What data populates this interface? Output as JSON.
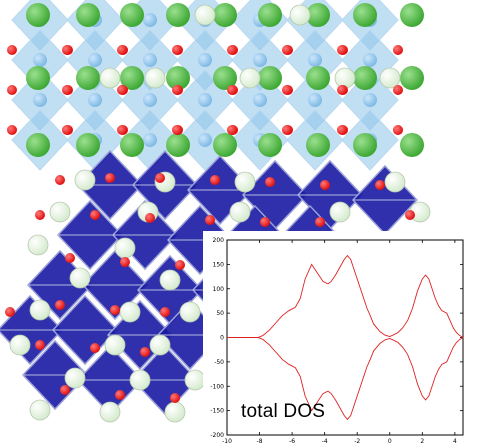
{
  "colors": {
    "light_octahedra": "#8ec5ea",
    "dark_octahedra": "#1a1aa3",
    "green_atoms": "#3fa935",
    "pale_atoms": "#d6ebcf",
    "oxygen_atoms": "#e01010",
    "dos_curve": "#e02020"
  },
  "chart_data": {
    "type": "line",
    "title": "",
    "xlabel": "",
    "ylabel": "",
    "label": "total DOS",
    "xlim": [
      -10,
      4.5
    ],
    "ylim": [
      -200,
      200
    ],
    "x_ticks": [
      -10,
      -8,
      -6,
      -4,
      -2,
      0,
      2,
      4
    ],
    "y_ticks": [
      -200,
      -150,
      -100,
      -50,
      0,
      50,
      100,
      150,
      200
    ],
    "series": [
      {
        "x": [
          -10,
          -8.1,
          -7.8,
          -7.4,
          -7.0,
          -6.6,
          -6.2,
          -5.8,
          -5.5,
          -5.2,
          -4.8,
          -4.4,
          -4.1,
          -3.8,
          -3.6,
          -3.3,
          -3.0,
          -2.8,
          -2.6,
          -2.4,
          -2.2,
          -2.0,
          -1.8,
          -1.6,
          -1.4,
          -1.2,
          -1.0,
          -0.6,
          -0.3,
          0.0,
          0.2,
          0.5,
          0.8,
          1.1,
          1.4,
          1.7,
          2.0,
          2.2,
          2.4,
          2.6,
          2.8,
          3.0,
          3.2,
          3.5,
          3.7,
          3.9,
          4.1,
          4.3,
          4.5
        ],
        "values": [
          0,
          0,
          4,
          15,
          30,
          45,
          55,
          62,
          80,
          120,
          150,
          130,
          115,
          110,
          115,
          130,
          148,
          160,
          168,
          160,
          140,
          120,
          100,
          80,
          60,
          45,
          28,
          12,
          5,
          2,
          5,
          10,
          20,
          35,
          60,
          95,
          120,
          128,
          120,
          100,
          80,
          65,
          55,
          50,
          35,
          20,
          10,
          4,
          0
        ]
      },
      {
        "x": [
          -10,
          -8.1,
          -7.8,
          -7.4,
          -7.0,
          -6.6,
          -6.2,
          -5.8,
          -5.5,
          -5.2,
          -4.8,
          -4.4,
          -4.1,
          -3.8,
          -3.6,
          -3.3,
          -3.0,
          -2.8,
          -2.6,
          -2.4,
          -2.2,
          -2.0,
          -1.8,
          -1.6,
          -1.4,
          -1.2,
          -1.0,
          -0.6,
          -0.3,
          0.0,
          0.2,
          0.5,
          0.8,
          1.1,
          1.4,
          1.7,
          2.0,
          2.2,
          2.4,
          2.6,
          2.8,
          3.0,
          3.2,
          3.5,
          3.7,
          3.9,
          4.1,
          4.3,
          4.5
        ],
        "values": [
          0,
          0,
          -4,
          -15,
          -30,
          -45,
          -55,
          -62,
          -80,
          -120,
          -150,
          -130,
          -115,
          -110,
          -115,
          -130,
          -148,
          -160,
          -168,
          -160,
          -140,
          -120,
          -100,
          -80,
          -60,
          -45,
          -28,
          -12,
          -5,
          -2,
          -5,
          -10,
          -20,
          -35,
          -60,
          -95,
          -120,
          -128,
          -120,
          -100,
          -80,
          -65,
          -55,
          -50,
          -35,
          -20,
          -10,
          -4,
          0
        ]
      }
    ],
    "grid": false
  }
}
